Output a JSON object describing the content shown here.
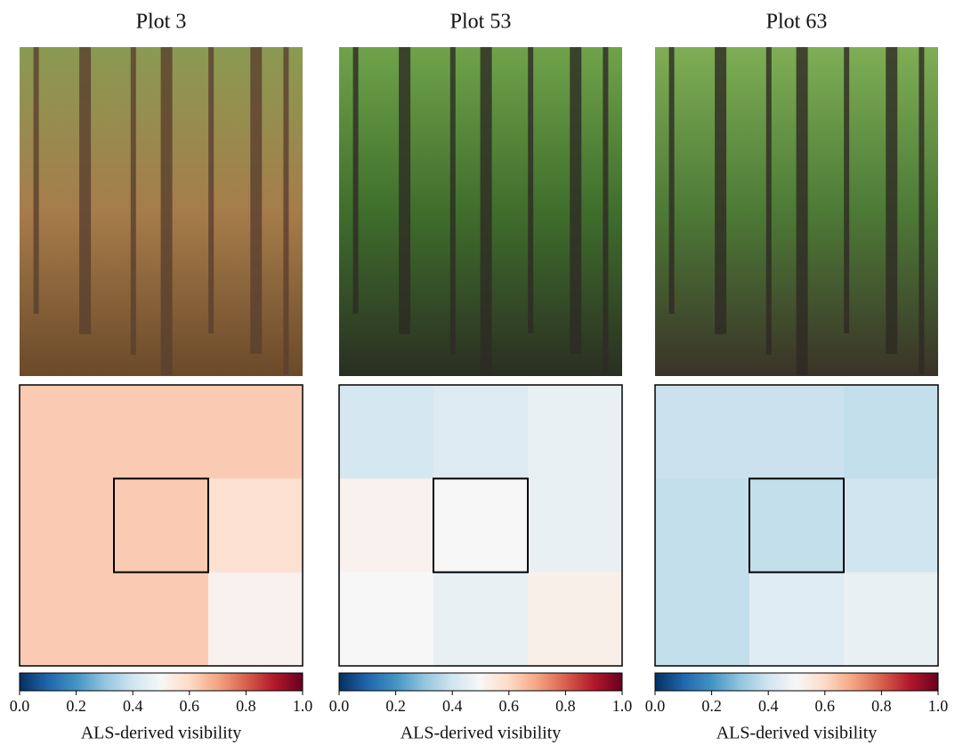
{
  "chart_data": [
    {
      "type": "heatmap",
      "title": "Plot 3",
      "values": [
        [
          0.63,
          0.63,
          0.63
        ],
        [
          0.63,
          0.63,
          0.58
        ],
        [
          0.63,
          0.63,
          0.52
        ]
      ],
      "xlim": [
        0,
        1
      ],
      "xticks": [
        {
          "value": 0,
          "label": "0.0"
        },
        {
          "value": 0.2,
          "label": "0.2"
        },
        {
          "value": 0.4,
          "label": "0.4"
        },
        {
          "value": 0.6,
          "label": "0.6"
        },
        {
          "value": 0.8,
          "label": "0.8"
        },
        {
          "value": 1,
          "label": "1.0"
        }
      ],
      "xlabel": "ALS-derived visibility",
      "colorscale": [
        "#053061",
        "#2166ac",
        "#4393c3",
        "#92c5de",
        "#d1e5f0",
        "#f7f7f7",
        "#fddbc7",
        "#f4a582",
        "#d6604d",
        "#b2182b",
        "#67001f"
      ]
    },
    {
      "type": "heatmap",
      "title": "Plot 53",
      "values": [
        [
          0.41,
          0.43,
          0.46
        ],
        [
          0.52,
          0.5,
          0.46
        ],
        [
          0.5,
          0.46,
          0.53
        ]
      ],
      "xlim": [
        0,
        1
      ],
      "xticks": [
        {
          "value": 0,
          "label": "0.0"
        },
        {
          "value": 0.2,
          "label": "0.2"
        },
        {
          "value": 0.4,
          "label": "0.4"
        },
        {
          "value": 0.6,
          "label": "0.6"
        },
        {
          "value": 0.8,
          "label": "0.8"
        },
        {
          "value": 1,
          "label": "1.0"
        }
      ],
      "xlabel": "ALS-derived visibility",
      "colorscale": [
        "#053061",
        "#2166ac",
        "#4393c3",
        "#92c5de",
        "#d1e5f0",
        "#f7f7f7",
        "#fddbc7",
        "#f4a582",
        "#d6604d",
        "#b2182b",
        "#67001f"
      ]
    },
    {
      "type": "heatmap",
      "title": "Plot 63",
      "values": [
        [
          0.39,
          0.39,
          0.38
        ],
        [
          0.38,
          0.38,
          0.4
        ],
        [
          0.38,
          0.44,
          0.46
        ]
      ],
      "xlim": [
        0,
        1
      ],
      "xticks": [
        {
          "value": 0,
          "label": "0.0"
        },
        {
          "value": 0.2,
          "label": "0.2"
        },
        {
          "value": 0.4,
          "label": "0.4"
        },
        {
          "value": 0.6,
          "label": "0.6"
        },
        {
          "value": 0.8,
          "label": "0.8"
        },
        {
          "value": 1,
          "label": "1.0"
        }
      ],
      "xlabel": "ALS-derived visibility",
      "colorscale": [
        "#053061",
        "#2166ac",
        "#4393c3",
        "#92c5de",
        "#d1e5f0",
        "#f7f7f7",
        "#fddbc7",
        "#f4a582",
        "#d6604d",
        "#b2182b",
        "#67001f"
      ]
    }
  ]
}
